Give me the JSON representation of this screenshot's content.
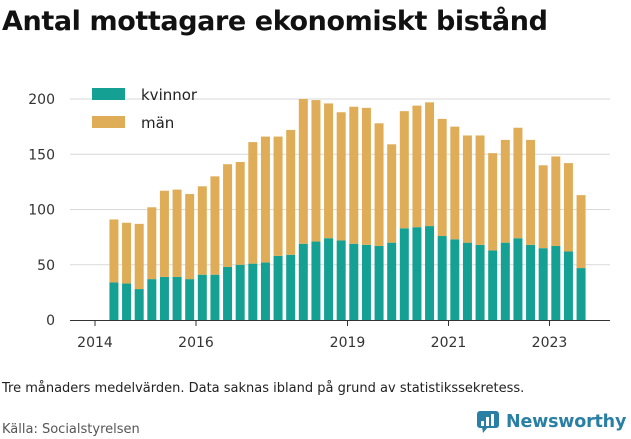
{
  "title": "Antal mottagare ekonomiskt bistånd",
  "note": "Tre månaders medelvärden. Data saknas ibland på grund av statistikssekretess.",
  "source": "Källa: Socialstyrelsen",
  "brand": {
    "name": "Newsworthy",
    "icon": "newsworthy-logo-icon"
  },
  "colors": {
    "kvinnor": "#14a093",
    "man": "#dfad57",
    "grid": "#d9d9d9",
    "axis": "#333333"
  },
  "chart_data": {
    "type": "bar",
    "stacked": true,
    "title": "Antal mottagare ekonomiskt bistånd",
    "xlabel": "",
    "ylabel": "",
    "ylim": [
      0,
      200
    ],
    "yticks": [
      "0",
      "50",
      "100",
      "150",
      "200"
    ],
    "xticks": [
      {
        "label": "2014",
        "position": 2014.0
      },
      {
        "label": "2016",
        "position": 2016.0
      },
      {
        "label": "2019",
        "position": 2019.0
      },
      {
        "label": "2021",
        "position": 2021.0
      },
      {
        "label": "2023",
        "position": 2023.0
      }
    ],
    "grid": true,
    "legend": "top-left",
    "x": [
      2014.375,
      2014.625,
      2014.875,
      2015.125,
      2015.375,
      2015.625,
      2015.875,
      2016.125,
      2016.375,
      2016.625,
      2016.875,
      2017.125,
      2017.375,
      2017.625,
      2017.875,
      2018.125,
      2018.375,
      2018.625,
      2018.875,
      2019.125,
      2019.375,
      2019.625,
      2019.875,
      2020.125,
      2020.375,
      2020.625,
      2020.875,
      2021.125,
      2021.375,
      2021.625,
      2021.875,
      2022.125,
      2022.375,
      2022.625,
      2022.875,
      2023.125,
      2023.375,
      2023.625
    ],
    "series": [
      {
        "name": "kvinnor",
        "values": [
          34,
          33,
          28,
          37,
          39,
          39,
          37,
          41,
          41,
          48,
          50,
          51,
          52,
          58,
          59,
          69,
          71,
          74,
          72,
          69,
          68,
          67,
          70,
          83,
          84,
          85,
          76,
          73,
          70,
          68,
          63,
          70,
          74,
          68,
          65,
          67,
          62,
          47
        ]
      },
      {
        "name": "män",
        "values": [
          57,
          55,
          59,
          65,
          78,
          79,
          77,
          80,
          89,
          93,
          93,
          110,
          114,
          108,
          113,
          131,
          128,
          122,
          116,
          124,
          124,
          111,
          89,
          106,
          110,
          112,
          106,
          102,
          97,
          99,
          88,
          93,
          100,
          95,
          75,
          81,
          80,
          66
        ]
      }
    ]
  }
}
